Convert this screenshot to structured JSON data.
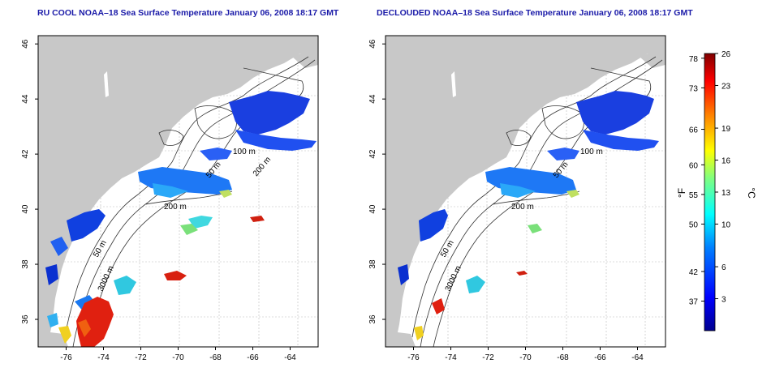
{
  "maps": [
    {
      "id": "left",
      "title": "RU COOL NOAA–18 Sea Surface Temperature January 06, 2008 18:17 GMT",
      "contours": [
        "200 m",
        "100 m",
        "50 m",
        "200 m",
        "50 m",
        "3000 m"
      ]
    },
    {
      "id": "right",
      "title": "DECLOUDED NOAA–18 Sea Surface Temperature January 06, 2008 18:17 GMT",
      "contours": [
        "100 m",
        "50 m",
        "200 m",
        "50 m",
        "3000 m"
      ]
    }
  ],
  "axes": {
    "lon_ticks": [
      "-76",
      "-74",
      "-72",
      "-70",
      "-68",
      "-66",
      "-64"
    ],
    "lat_ticks": [
      "36",
      "38",
      "40",
      "42",
      "44",
      "46"
    ],
    "lon_range": [
      -77.5,
      -62.5
    ],
    "lat_range": [
      35,
      46.3
    ]
  },
  "colorbar": {
    "fahrenheit_label": "°F",
    "celsius_label": "°C",
    "fahrenheit_ticks": [
      "78",
      "73",
      "66",
      "60",
      "55",
      "50",
      "42",
      "37"
    ],
    "celsius_ticks": [
      "26",
      "23",
      "19",
      "16",
      "13",
      "10",
      "6",
      "3"
    ],
    "celsius_range": [
      0,
      26
    ],
    "colors": [
      "#00008f",
      "#0000ff",
      "#0080ff",
      "#00ffff",
      "#80ff80",
      "#ffff00",
      "#ff8000",
      "#ff0000",
      "#800000"
    ]
  },
  "colors": {
    "land": "#c8c8c8",
    "title": "#1a1aa8"
  }
}
